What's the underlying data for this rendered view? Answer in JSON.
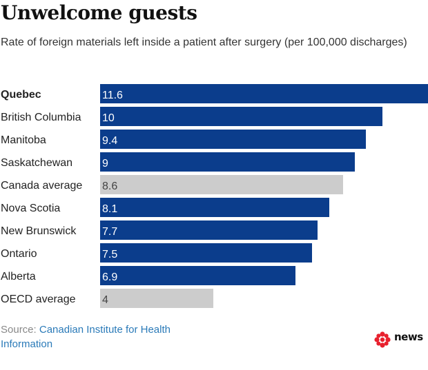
{
  "header": {
    "title": "Unwelcome guests",
    "subtitle": "Rate of foreign materials left inside a patient after surgery (per 100,000 discharges)"
  },
  "chart_data": {
    "type": "bar",
    "orientation": "horizontal",
    "title": "Unwelcome guests",
    "subtitle": "Rate of foreign materials left inside a patient after surgery (per 100,000 discharges)",
    "categories": [
      "Quebec",
      "British Columbia",
      "Manitoba",
      "Saskatchewan",
      "Canada average",
      "Nova Scotia",
      "New Brunswick",
      "Ontario",
      "Alberta",
      "OECD average"
    ],
    "values": [
      11.6,
      10,
      9.4,
      9,
      8.6,
      8.1,
      7.7,
      7.5,
      6.9,
      4
    ],
    "value_labels": [
      "11.6",
      "10",
      "9.4",
      "9",
      "8.6",
      "8.1",
      "7.7",
      "7.5",
      "6.9",
      "4"
    ],
    "highlight": [
      "primary",
      "primary",
      "primary",
      "primary",
      "average",
      "primary",
      "primary",
      "primary",
      "primary",
      "average"
    ],
    "bold_categories": [
      "Quebec"
    ],
    "xlim": [
      0,
      11.6
    ],
    "xlabel": "",
    "ylabel": "",
    "grid": false,
    "colors": {
      "primary": "#0b3d8c",
      "average": "#cccccc",
      "label_on_primary": "#ffffff",
      "label_on_average": "#444444"
    }
  },
  "footer": {
    "source_prefix": "Source:",
    "source_link": "Canadian Institute for Health Information",
    "logo_text": "news",
    "logo_color": "#e8212e"
  }
}
